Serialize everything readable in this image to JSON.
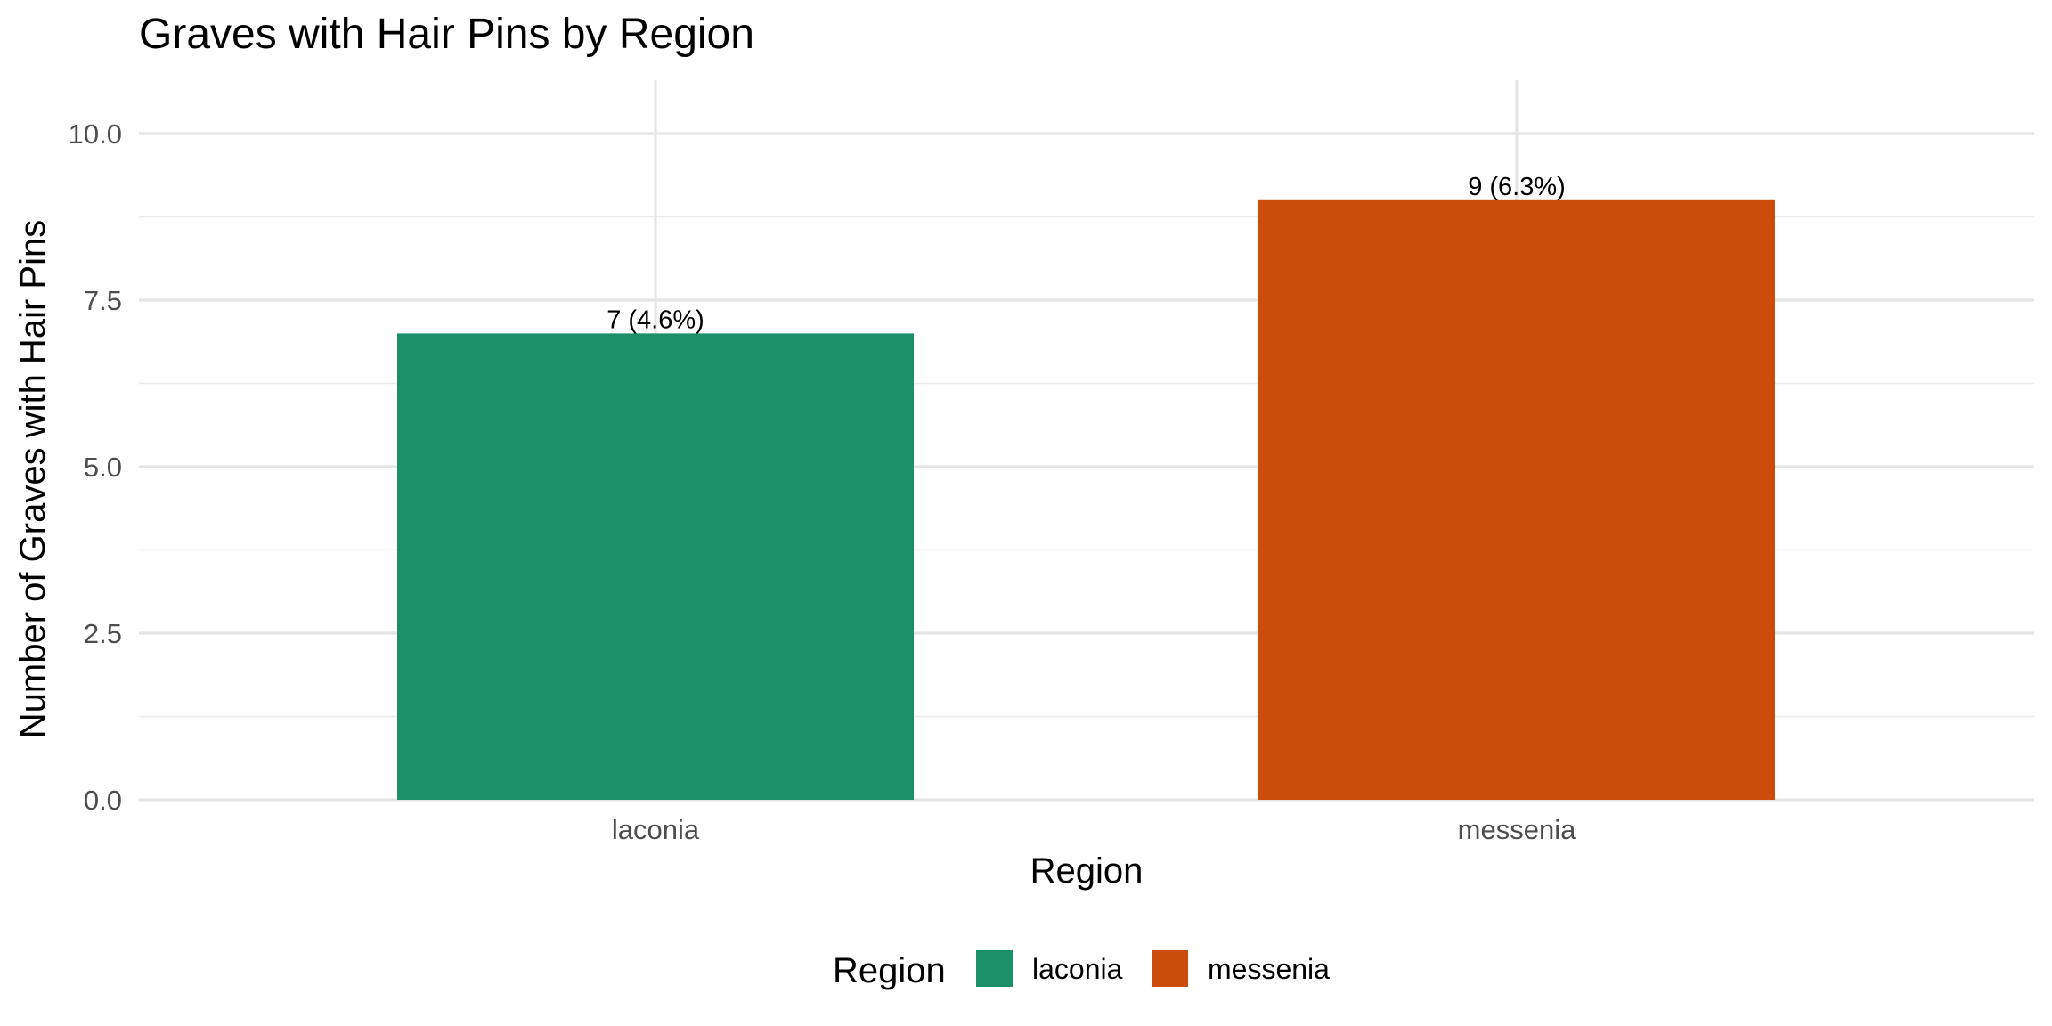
{
  "chart_data": {
    "type": "bar",
    "title": "Graves with Hair Pins by Region",
    "xlabel": "Region",
    "ylabel": "Number of Graves with Hair Pins",
    "categories": [
      "laconia",
      "messenia"
    ],
    "values": [
      7,
      9
    ],
    "data_labels": [
      "7 (4.6%)",
      "9 (6.3%)"
    ],
    "colors": [
      "#1b9068",
      "#cc4c0b"
    ],
    "ylim": [
      0,
      10.8
    ],
    "yticks": [
      0,
      2.5,
      5,
      7.5,
      10
    ],
    "ytick_labels": [
      "0.0",
      "2.5",
      "5.0",
      "7.5",
      "10.0"
    ],
    "grid": true,
    "legend": {
      "title": "Region",
      "position": "bottom",
      "entries": [
        "laconia",
        "messenia"
      ]
    }
  }
}
